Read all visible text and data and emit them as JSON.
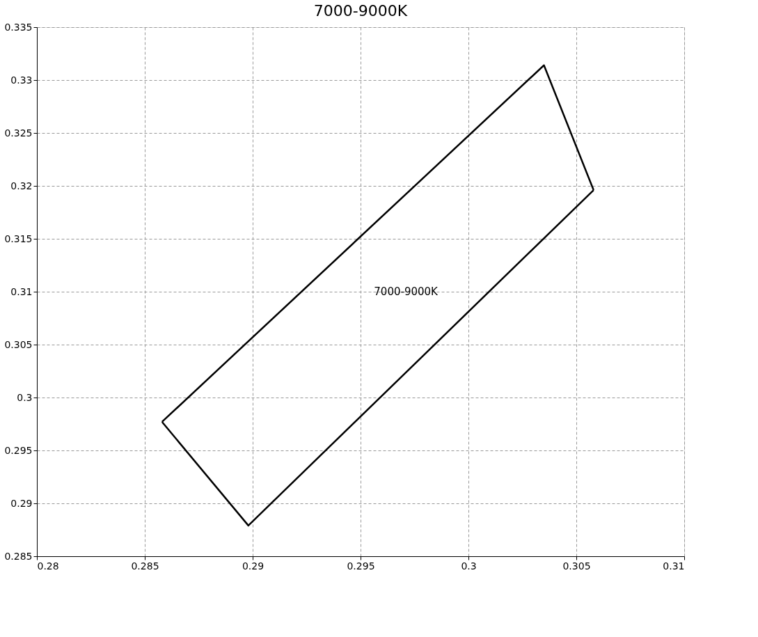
{
  "chart_data": {
    "type": "line",
    "title": "7000-9000K",
    "series": [
      {
        "color": "#000000",
        "x": [
          0.2858,
          0.3035,
          0.3058
        ],
        "values": [
          0.2977,
          0.3314,
          0.3196
        ]
      },
      {
        "color": "#000000",
        "x": [
          0.2858,
          0.2898,
          0.3058
        ],
        "values": [
          0.2977,
          0.2879,
          0.3196
        ]
      }
    ],
    "annotations": [
      "7000-9000K"
    ],
    "xlim": [
      0.28,
      0.31
    ],
    "xticks": [
      0.28,
      0.285,
      0.29,
      0.295,
      0.3,
      0.305,
      0.31
    ],
    "ylim": [
      0.285,
      0.335
    ],
    "yticks": [
      0.285,
      0.29,
      0.295,
      0.3,
      0.305,
      0.31,
      0.315,
      0.32,
      0.325,
      0.33,
      0.335
    ],
    "grid": true,
    "marker": "none",
    "line_style": "solid"
  }
}
